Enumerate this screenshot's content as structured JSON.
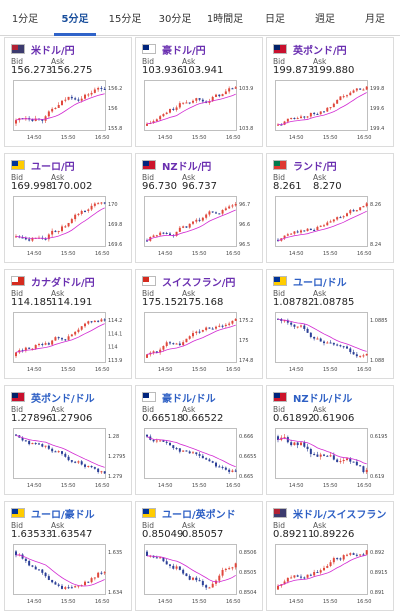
{
  "tabs": [
    "1分足",
    "5分足",
    "15分足",
    "30分足",
    "1時間足",
    "日足",
    "週足",
    "月足"
  ],
  "active_tab": 1,
  "bid_label": "Bid",
  "ask_label": "Ask",
  "colors": {
    "up": "#e0483c",
    "down": "#2b3f97",
    "ma": "#d22ad2",
    "title_purple": "#6a2fb0",
    "title_blue": "#2d5fc4"
  },
  "cards": [
    {
      "pair": "米ドル/円",
      "bid": "156.273",
      "ask": "156.275",
      "flag": "us",
      "title_color": "purple",
      "trend": "up",
      "y_ticks": [
        "156.2",
        "156",
        "155.8"
      ],
      "x_ticks": [
        "14:50",
        "15:50",
        "16:50"
      ]
    },
    {
      "pair": "豪ドル/円",
      "bid": "103.936",
      "ask": "103.941",
      "flag": "au",
      "title_color": "purple",
      "trend": "up",
      "y_ticks": [
        "103.9",
        "103.8"
      ],
      "x_ticks": [
        "14:50",
        "15:50",
        "16:50"
      ]
    },
    {
      "pair": "英ポンド/円",
      "bid": "199.873",
      "ask": "199.880",
      "flag": "gb",
      "title_color": "purple",
      "trend": "up",
      "y_ticks": [
        "199.8",
        "199.6",
        "199.4"
      ],
      "x_ticks": [
        "14:50",
        "15:50",
        "16:50"
      ]
    },
    {
      "pair": "ユーロ/円",
      "bid": "169.998",
      "ask": "170.002",
      "flag": "eu",
      "title_color": "purple",
      "trend": "up",
      "y_ticks": [
        "170",
        "169.8",
        "169.6"
      ],
      "x_ticks": [
        "14:50",
        "15:50",
        "16:50"
      ]
    },
    {
      "pair": "NZドル/円",
      "bid": "96.730",
      "ask": "96.737",
      "flag": "nz",
      "title_color": "purple",
      "trend": "up",
      "y_ticks": [
        "96.7",
        "96.6",
        "96.5"
      ],
      "x_ticks": [
        "14:50",
        "15:50",
        "16:50"
      ]
    },
    {
      "pair": "ランド/円",
      "bid": "8.261",
      "ask": "8.270",
      "flag": "za",
      "title_color": "purple",
      "trend": "up",
      "y_ticks": [
        "8.26",
        "8.24"
      ],
      "x_ticks": [
        "14:50",
        "15:50",
        "16:50"
      ]
    },
    {
      "pair": "カナダドル/円",
      "bid": "114.185",
      "ask": "114.191",
      "flag": "ca",
      "title_color": "purple",
      "trend": "up",
      "y_ticks": [
        "114.2",
        "114.1",
        "114",
        "113.9"
      ],
      "x_ticks": [
        "14:50",
        "15:50",
        "16:50"
      ]
    },
    {
      "pair": "スイスフラン/円",
      "bid": "175.152",
      "ask": "175.168",
      "flag": "ch",
      "title_color": "purple",
      "trend": "up",
      "y_ticks": [
        "175.2",
        "175",
        "174.8"
      ],
      "x_ticks": [
        "14:50",
        "15:50",
        "16:50"
      ]
    },
    {
      "pair": "ユーロ/ドル",
      "bid": "1.08782",
      "ask": "1.08785",
      "flag": "eu",
      "title_color": "blue",
      "trend": "down",
      "y_ticks": [
        "1.0885",
        "1.088"
      ],
      "x_ticks": [
        "14:50",
        "15:50",
        "16:50"
      ]
    },
    {
      "pair": "英ポンド/ドル",
      "bid": "1.27896",
      "ask": "1.27906",
      "flag": "gb",
      "title_color": "blue",
      "trend": "down",
      "y_ticks": [
        "1.28",
        "1.2795",
        "1.279"
      ],
      "x_ticks": [
        "14:50",
        "15:50",
        "16:50"
      ]
    },
    {
      "pair": "豪ドル/ドル",
      "bid": "0.66518",
      "ask": "0.66522",
      "flag": "au",
      "title_color": "blue",
      "trend": "down",
      "y_ticks": [
        "0.666",
        "0.6655",
        "0.665"
      ],
      "x_ticks": [
        "14:50",
        "15:50",
        "16:50"
      ]
    },
    {
      "pair": "NZドル/ドル",
      "bid": "0.61892",
      "ask": "0.61906",
      "flag": "nz",
      "title_color": "blue",
      "trend": "down",
      "y_ticks": [
        "0.6195",
        "0.619"
      ],
      "x_ticks": [
        "14:50",
        "15:50",
        "16:50"
      ]
    },
    {
      "pair": "ユーロ/豪ドル",
      "bid": "1.63533",
      "ask": "1.63547",
      "flag": "eu",
      "title_color": "blue",
      "trend": "downup",
      "y_ticks": [
        "1.635",
        "1.634"
      ],
      "x_ticks": [
        "14:50",
        "15:50",
        "16:50"
      ]
    },
    {
      "pair": "ユーロ/英ポンド",
      "bid": "0.85049",
      "ask": "0.85057",
      "flag": "eu",
      "title_color": "blue",
      "trend": "downup2",
      "y_ticks": [
        "0.8506",
        "0.8505",
        "0.8504"
      ],
      "x_ticks": [
        "14:50",
        "15:50",
        "16:50"
      ]
    },
    {
      "pair": "米ドル/スイスフラン",
      "bid": "0.89211",
      "ask": "0.89226",
      "flag": "us",
      "title_color": "blue",
      "trend": "up",
      "y_ticks": [
        "0.892",
        "0.8915",
        "0.891"
      ],
      "x_ticks": [
        "14:50",
        "15:50",
        "16:50"
      ]
    }
  ]
}
